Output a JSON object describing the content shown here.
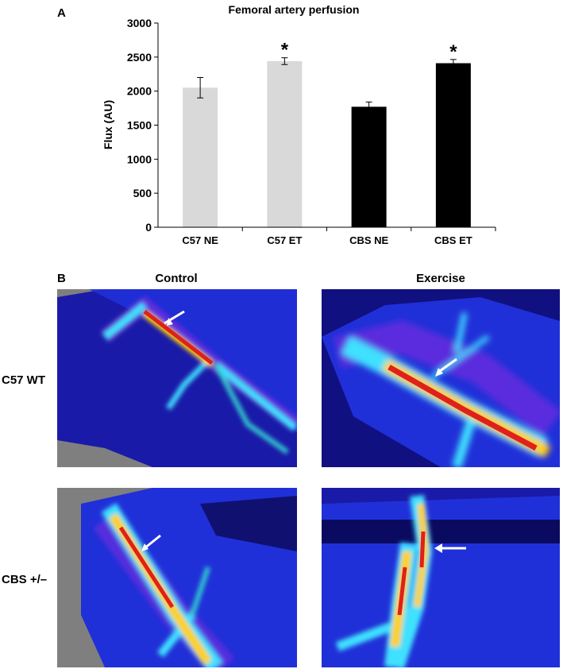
{
  "panel_a_label": "A",
  "panel_b_label": "B",
  "chart_data": {
    "type": "bar",
    "title": "Femoral artery perfusion",
    "ylabel": "Flux (AU)",
    "xlabel": "",
    "ylim": [
      0,
      3000
    ],
    "yticks": [
      0,
      500,
      1000,
      1500,
      2000,
      2500,
      3000
    ],
    "categories": [
      "C57 NE",
      "C57 ET",
      "CBS NE",
      "CBS ET"
    ],
    "values": [
      2050,
      2440,
      1770,
      2410
    ],
    "errors": [
      150,
      50,
      70,
      55
    ],
    "significance": [
      "",
      "*",
      "",
      "*"
    ],
    "colors": [
      "#d9d9d9",
      "#d9d9d9",
      "#000000",
      "#000000"
    ]
  },
  "images": {
    "columns": [
      "Control",
      "Exercise"
    ],
    "rows": [
      "C57 WT",
      "CBS +/–"
    ]
  }
}
